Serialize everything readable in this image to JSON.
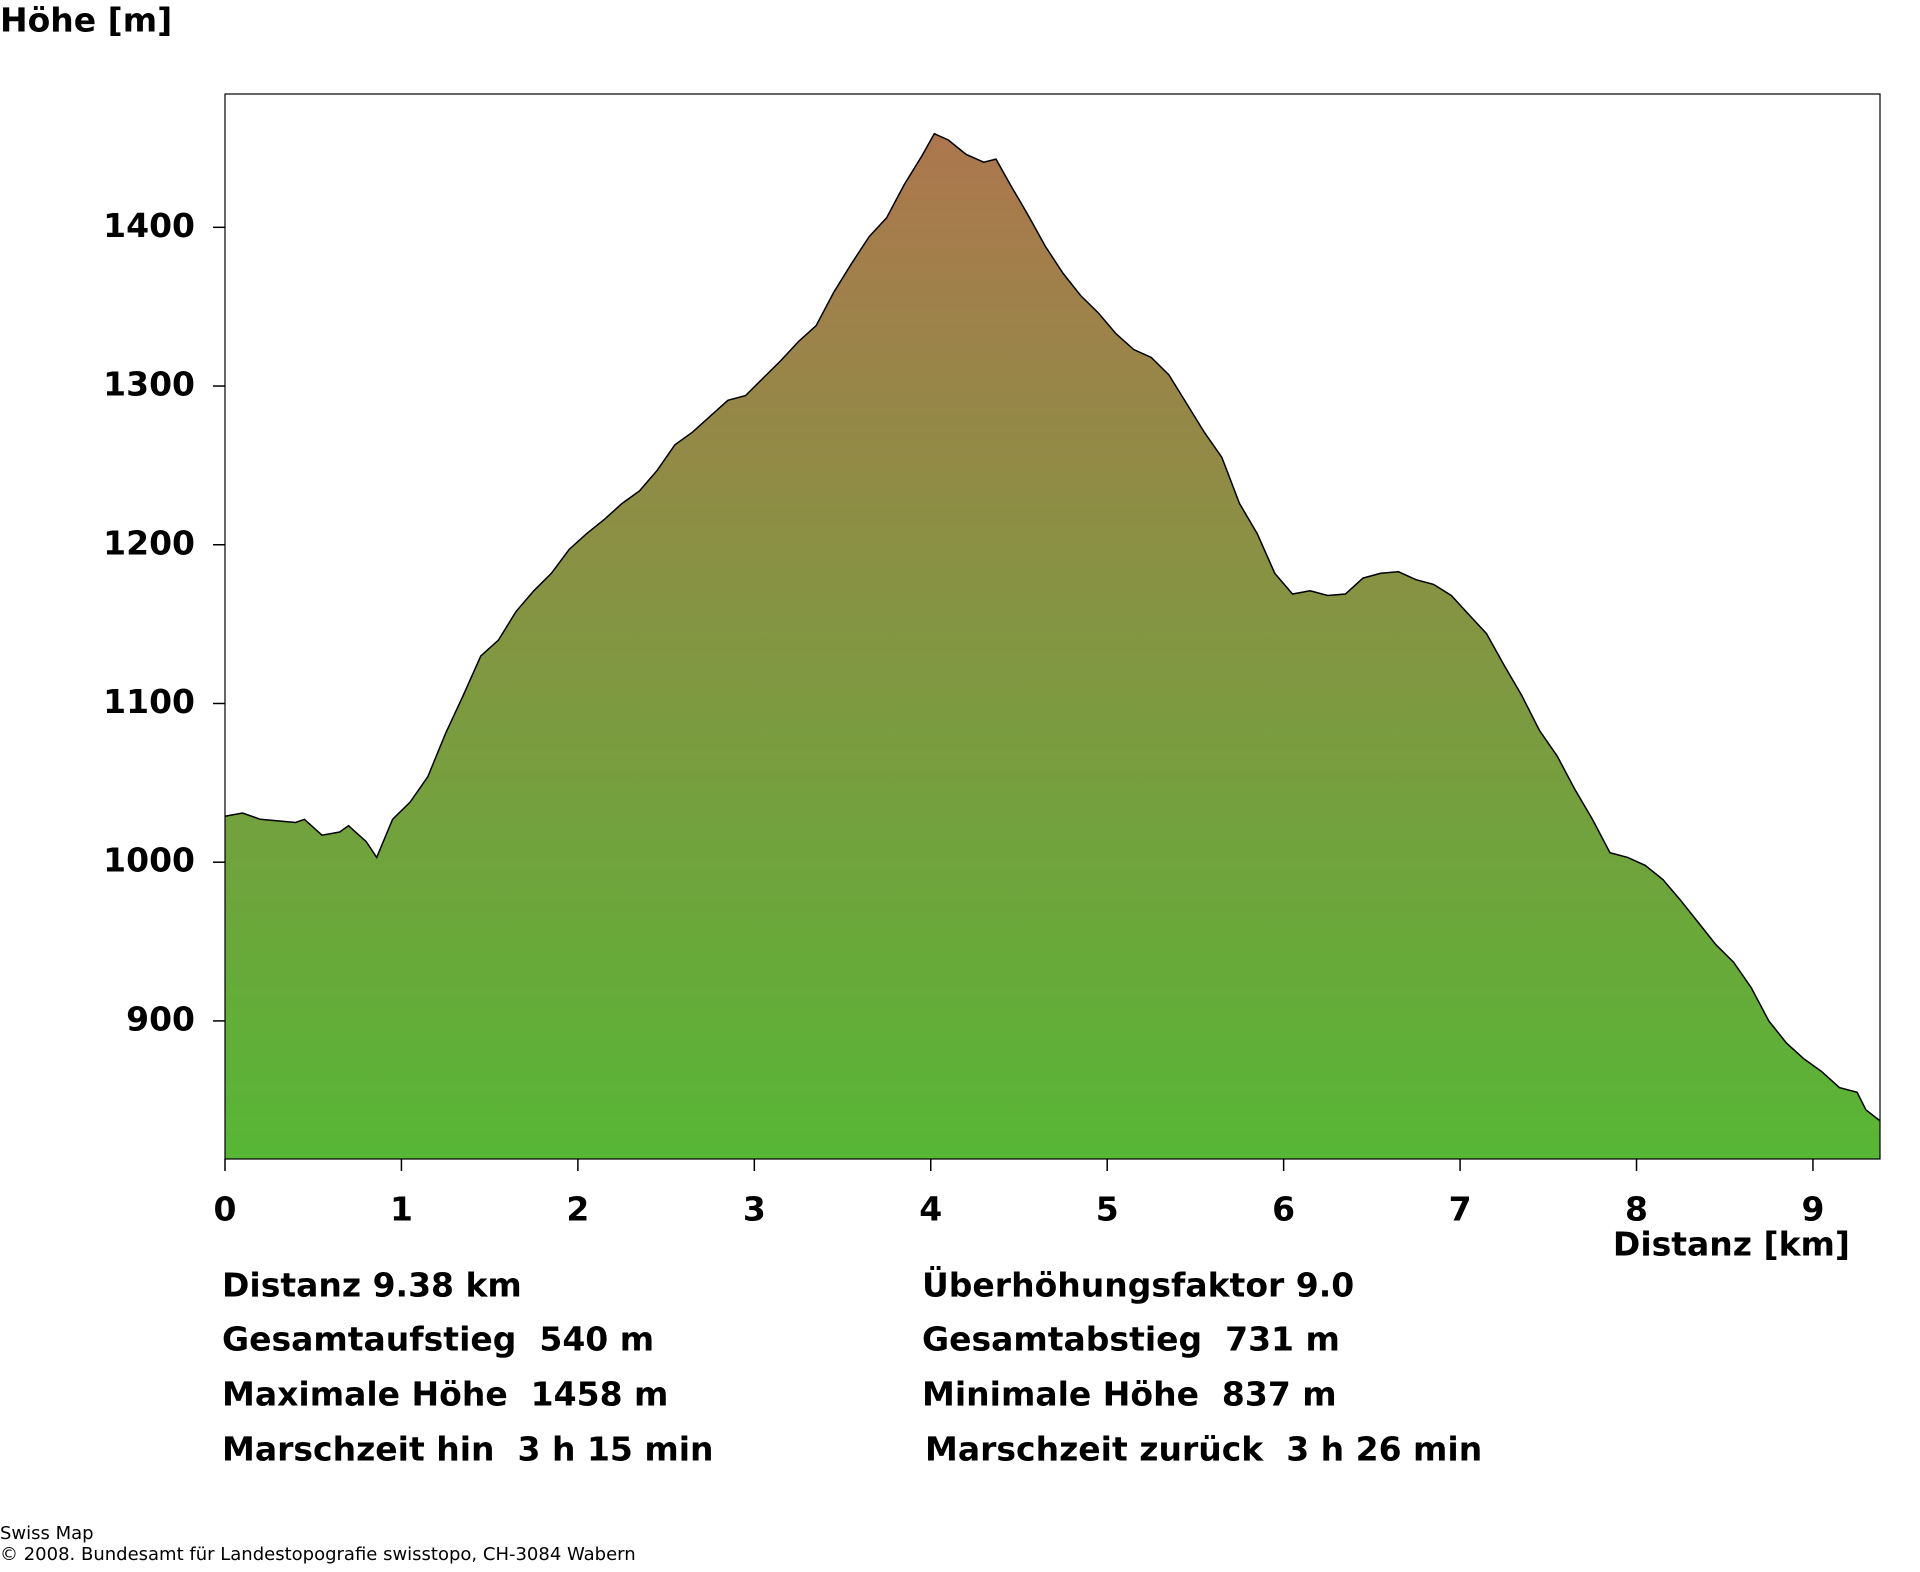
{
  "chart_data": {
    "type": "area",
    "y_label": "Höhe [m]",
    "x_label": "Distanz [km]",
    "gradient": [
      "#b0744f",
      "#57b635"
    ],
    "line_color": "#000000",
    "x": [
      0,
      0.1,
      0.2,
      0.3,
      0.4,
      0.45,
      0.55,
      0.65,
      0.7,
      0.8,
      0.86,
      0.95,
      1.05,
      1.15,
      1.25,
      1.35,
      1.45,
      1.55,
      1.65,
      1.75,
      1.85,
      1.95,
      2.05,
      2.15,
      2.25,
      2.35,
      2.45,
      2.55,
      2.65,
      2.75,
      2.85,
      2.95,
      3.05,
      3.15,
      3.25,
      3.35,
      3.45,
      3.55,
      3.65,
      3.75,
      3.85,
      3.95,
      4.02,
      4.1,
      4.2,
      4.3,
      4.37,
      4.45,
      4.55,
      4.65,
      4.75,
      4.85,
      4.95,
      5.05,
      5.15,
      5.25,
      5.35,
      5.45,
      5.55,
      5.65,
      5.75,
      5.85,
      5.95,
      6.05,
      6.15,
      6.25,
      6.35,
      6.45,
      6.55,
      6.65,
      6.75,
      6.85,
      6.95,
      7.05,
      7.15,
      7.25,
      7.35,
      7.45,
      7.55,
      7.65,
      7.75,
      7.85,
      7.95,
      8.05,
      8.15,
      8.25,
      8.35,
      8.45,
      8.55,
      8.65,
      8.75,
      8.85,
      8.95,
      9.05,
      9.15,
      9.25,
      9.3,
      9.38
    ],
    "values": [
      1029,
      1031,
      1027,
      1026,
      1025,
      1027,
      1017,
      1019,
      1023,
      1013,
      1003,
      1027,
      1038,
      1054,
      1081,
      1105,
      1130,
      1140,
      1158,
      1171,
      1182,
      1197,
      1207,
      1216,
      1226,
      1234,
      1247,
      1263,
      1271,
      1281,
      1291,
      1294,
      1305,
      1316,
      1328,
      1338,
      1359,
      1377,
      1394,
      1406,
      1427,
      1445,
      1459,
      1455,
      1446,
      1441,
      1443,
      1427,
      1408,
      1388,
      1371,
      1357,
      1346,
      1333,
      1323,
      1318,
      1307,
      1289,
      1271,
      1255,
      1226,
      1207,
      1182,
      1169,
      1171,
      1168,
      1169,
      1179,
      1182,
      1183,
      1178,
      1175,
      1168,
      1156,
      1144,
      1124,
      1105,
      1083,
      1067,
      1046,
      1027,
      1006,
      1003,
      998,
      989,
      976,
      962,
      948,
      937,
      921,
      900,
      886,
      876,
      868,
      858,
      855,
      844,
      837
    ],
    "xlim": [
      0,
      9.38
    ],
    "ylim": [
      813,
      1484
    ],
    "xticks": [
      0,
      1,
      2,
      3,
      4,
      5,
      6,
      7,
      8,
      9
    ],
    "yticks": [
      900,
      1000,
      1100,
      1200,
      1300,
      1400
    ],
    "annotations": [
      "Distanz 9.38 km",
      "Gesamtaufstieg  540 m",
      "Maximale Höhe  1458 m",
      "Marschzeit hin  3 h 15 min",
      "Überhöhungsfaktor 9.0",
      "Gesamtabstieg  731 m",
      "Minimale Höhe  837 m",
      "Marschzeit zurück  3 h 26 min"
    ],
    "footer": [
      "Swiss Map",
      "© 2008. Bundesamt für Landestopografie swisstopo, CH-3084 Wabern"
    ]
  }
}
